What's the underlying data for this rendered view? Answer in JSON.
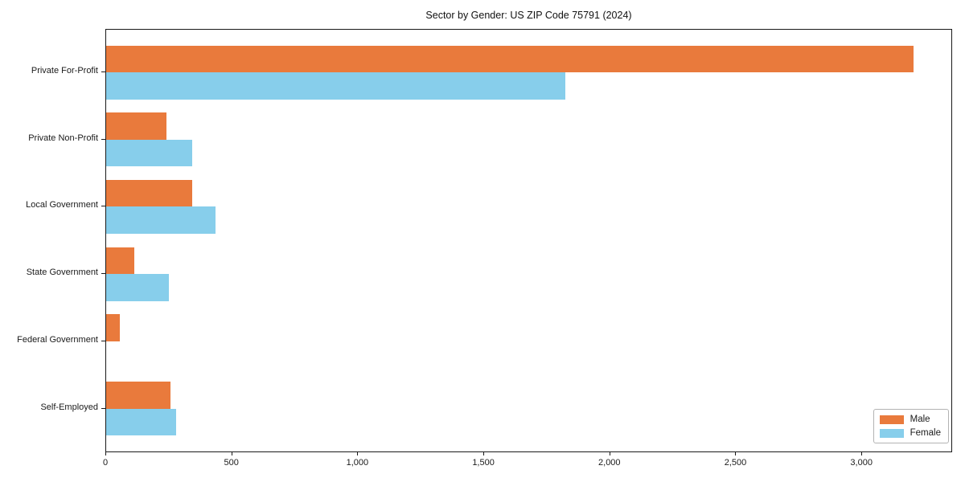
{
  "chart_data": {
    "type": "bar",
    "orientation": "horizontal",
    "title": "Sector by Gender: US ZIP Code 75791 (2024)",
    "categories": [
      "Private For-Profit",
      "Private Non-Profit",
      "Local Government",
      "State Government",
      "Federal Government",
      "Self-Employed"
    ],
    "series": [
      {
        "name": "Male",
        "color": "#e97a3c",
        "values": [
          3205,
          240,
          340,
          112,
          53,
          255
        ]
      },
      {
        "name": "Female",
        "color": "#87ceeb",
        "values": [
          1822,
          340,
          435,
          250,
          0,
          278
        ]
      }
    ],
    "xlabel": "",
    "ylabel": "",
    "xlim": [
      0,
      3360
    ],
    "x_ticks": [
      0,
      500,
      1000,
      1500,
      2000,
      2500,
      3000
    ],
    "x_tick_labels": [
      "0",
      "500",
      "1,000",
      "1,500",
      "2,000",
      "2,500",
      "3,000"
    ],
    "legend_position": "lower right",
    "grid": false,
    "background": "#ffffff"
  }
}
